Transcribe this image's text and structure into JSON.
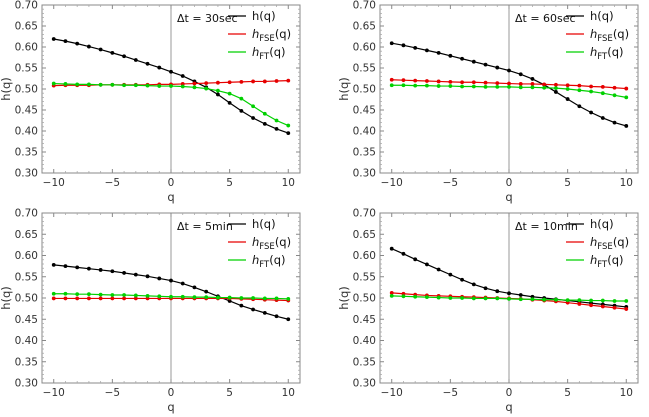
{
  "chart_data": [
    {
      "type": "line",
      "annotation": "Δt = 30sec",
      "xlabel": "q",
      "ylabel": "h(q)",
      "xlim": [
        -11,
        11
      ],
      "ylim": [
        0.3,
        0.7
      ],
      "xticks": [
        "−10",
        "−5",
        "0",
        "5",
        "10"
      ],
      "yticks": [
        "0.30",
        "0.35",
        "0.40",
        "0.45",
        "0.50",
        "0.55",
        "0.60",
        "0.65",
        "0.70"
      ],
      "legend_position": "top-right",
      "x": [
        -10,
        -9,
        -8,
        -7,
        -6,
        -5,
        -4,
        -3,
        -2,
        -1,
        0,
        1,
        2,
        3,
        4,
        5,
        6,
        7,
        8,
        9,
        10
      ],
      "series": [
        {
          "name_main": "h",
          "name_sub": "",
          "name_tail": "(q)",
          "color": "#000000",
          "values": [
            0.619,
            0.614,
            0.608,
            0.601,
            0.594,
            0.586,
            0.578,
            0.569,
            0.56,
            0.551,
            0.541,
            0.531,
            0.518,
            0.504,
            0.487,
            0.467,
            0.448,
            0.431,
            0.417,
            0.405,
            0.395
          ]
        },
        {
          "name_main": "h",
          "name_sub": "FSE",
          "name_tail": "(q)",
          "color": "#e60000",
          "values": [
            0.508,
            0.509,
            0.509,
            0.509,
            0.51,
            0.51,
            0.51,
            0.51,
            0.51,
            0.511,
            0.511,
            0.512,
            0.513,
            0.514,
            0.515,
            0.516,
            0.517,
            0.518,
            0.518,
            0.519,
            0.52
          ]
        },
        {
          "name_main": "h",
          "name_sub": "FT",
          "name_tail": "(q)",
          "color": "#00d000",
          "values": [
            0.513,
            0.512,
            0.511,
            0.511,
            0.51,
            0.51,
            0.509,
            0.509,
            0.508,
            0.507,
            0.507,
            0.506,
            0.504,
            0.501,
            0.496,
            0.489,
            0.477,
            0.459,
            0.441,
            0.425,
            0.413
          ]
        }
      ]
    },
    {
      "type": "line",
      "annotation": "Δt = 60sec",
      "xlabel": "q",
      "ylabel": "h(q)",
      "xlim": [
        -11,
        11
      ],
      "ylim": [
        0.3,
        0.7
      ],
      "xticks": [
        "−10",
        "−5",
        "0",
        "5",
        "10"
      ],
      "yticks": [
        "0.30",
        "0.35",
        "0.40",
        "0.45",
        "0.50",
        "0.55",
        "0.60",
        "0.65",
        "0.70"
      ],
      "legend_position": "top-right",
      "x": [
        -10,
        -9,
        -8,
        -7,
        -6,
        -5,
        -4,
        -3,
        -2,
        -1,
        0,
        1,
        2,
        3,
        4,
        5,
        6,
        7,
        8,
        9,
        10
      ],
      "series": [
        {
          "name_main": "h",
          "name_sub": "",
          "name_tail": "(q)",
          "color": "#000000",
          "values": [
            0.609,
            0.604,
            0.598,
            0.592,
            0.586,
            0.579,
            0.572,
            0.565,
            0.558,
            0.551,
            0.544,
            0.535,
            0.524,
            0.51,
            0.493,
            0.476,
            0.459,
            0.444,
            0.431,
            0.42,
            0.412
          ]
        },
        {
          "name_main": "h",
          "name_sub": "FSE",
          "name_tail": "(q)",
          "color": "#e60000",
          "values": [
            0.522,
            0.521,
            0.52,
            0.519,
            0.518,
            0.517,
            0.516,
            0.516,
            0.515,
            0.514,
            0.513,
            0.512,
            0.512,
            0.511,
            0.51,
            0.509,
            0.508,
            0.506,
            0.505,
            0.503,
            0.501
          ]
        },
        {
          "name_main": "h",
          "name_sub": "FT",
          "name_tail": "(q)",
          "color": "#00d000",
          "values": [
            0.509,
            0.509,
            0.508,
            0.508,
            0.507,
            0.507,
            0.506,
            0.506,
            0.505,
            0.505,
            0.505,
            0.504,
            0.504,
            0.503,
            0.502,
            0.5,
            0.497,
            0.494,
            0.49,
            0.485,
            0.48
          ]
        }
      ]
    },
    {
      "type": "line",
      "annotation": "Δt = 5min",
      "xlabel": "q",
      "ylabel": "h(q)",
      "xlim": [
        -11,
        11
      ],
      "ylim": [
        0.3,
        0.7
      ],
      "xticks": [
        "−10",
        "−5",
        "0",
        "5",
        "10"
      ],
      "yticks": [
        "0.30",
        "0.35",
        "0.40",
        "0.45",
        "0.50",
        "0.55",
        "0.60",
        "0.65",
        "0.70"
      ],
      "legend_position": "top-right",
      "x": [
        -10,
        -9,
        -8,
        -7,
        -6,
        -5,
        -4,
        -3,
        -2,
        -1,
        0,
        1,
        2,
        3,
        4,
        5,
        6,
        7,
        8,
        9,
        10
      ],
      "series": [
        {
          "name_main": "h",
          "name_sub": "",
          "name_tail": "(q)",
          "color": "#000000",
          "values": [
            0.578,
            0.575,
            0.572,
            0.569,
            0.566,
            0.563,
            0.559,
            0.555,
            0.551,
            0.546,
            0.541,
            0.534,
            0.525,
            0.515,
            0.504,
            0.493,
            0.482,
            0.473,
            0.465,
            0.457,
            0.45
          ]
        },
        {
          "name_main": "h",
          "name_sub": "FSE",
          "name_tail": "(q)",
          "color": "#e60000",
          "values": [
            0.499,
            0.499,
            0.499,
            0.499,
            0.499,
            0.499,
            0.499,
            0.499,
            0.499,
            0.499,
            0.499,
            0.499,
            0.499,
            0.499,
            0.499,
            0.499,
            0.498,
            0.497,
            0.496,
            0.495,
            0.494
          ]
        },
        {
          "name_main": "h",
          "name_sub": "FT",
          "name_tail": "(q)",
          "color": "#00d000",
          "values": [
            0.51,
            0.51,
            0.509,
            0.509,
            0.508,
            0.507,
            0.507,
            0.506,
            0.505,
            0.504,
            0.503,
            0.503,
            0.502,
            0.502,
            0.501,
            0.501,
            0.5,
            0.5,
            0.499,
            0.499,
            0.498
          ]
        }
      ]
    },
    {
      "type": "line",
      "annotation": "Δt = 10min",
      "xlabel": "q",
      "ylabel": "h(q)",
      "xlim": [
        -11,
        11
      ],
      "ylim": [
        0.3,
        0.7
      ],
      "xticks": [
        "−10",
        "−5",
        "0",
        "5",
        "10"
      ],
      "yticks": [
        "0.30",
        "0.35",
        "0.40",
        "0.45",
        "0.50",
        "0.55",
        "0.60",
        "0.65",
        "0.70"
      ],
      "legend_position": "top-right",
      "x": [
        -10,
        -9,
        -8,
        -7,
        -6,
        -5,
        -4,
        -3,
        -2,
        -1,
        0,
        1,
        2,
        3,
        4,
        5,
        6,
        7,
        8,
        9,
        10
      ],
      "series": [
        {
          "name_main": "h",
          "name_sub": "",
          "name_tail": "(q)",
          "color": "#000000",
          "values": [
            0.616,
            0.604,
            0.591,
            0.579,
            0.567,
            0.555,
            0.543,
            0.532,
            0.523,
            0.516,
            0.511,
            0.507,
            0.503,
            0.5,
            0.497,
            0.494,
            0.491,
            0.488,
            0.485,
            0.482,
            0.479
          ]
        },
        {
          "name_main": "h",
          "name_sub": "FSE",
          "name_tail": "(q)",
          "color": "#e60000",
          "values": [
            0.512,
            0.51,
            0.508,
            0.506,
            0.505,
            0.504,
            0.503,
            0.502,
            0.501,
            0.5,
            0.499,
            0.498,
            0.496,
            0.494,
            0.492,
            0.489,
            0.486,
            0.483,
            0.48,
            0.477,
            0.474
          ]
        },
        {
          "name_main": "h",
          "name_sub": "FT",
          "name_tail": "(q)",
          "color": "#00d000",
          "values": [
            0.505,
            0.504,
            0.503,
            0.502,
            0.501,
            0.5,
            0.5,
            0.499,
            0.499,
            0.499,
            0.498,
            0.497,
            0.497,
            0.496,
            0.496,
            0.495,
            0.495,
            0.494,
            0.494,
            0.493,
            0.493
          ]
        }
      ]
    }
  ]
}
